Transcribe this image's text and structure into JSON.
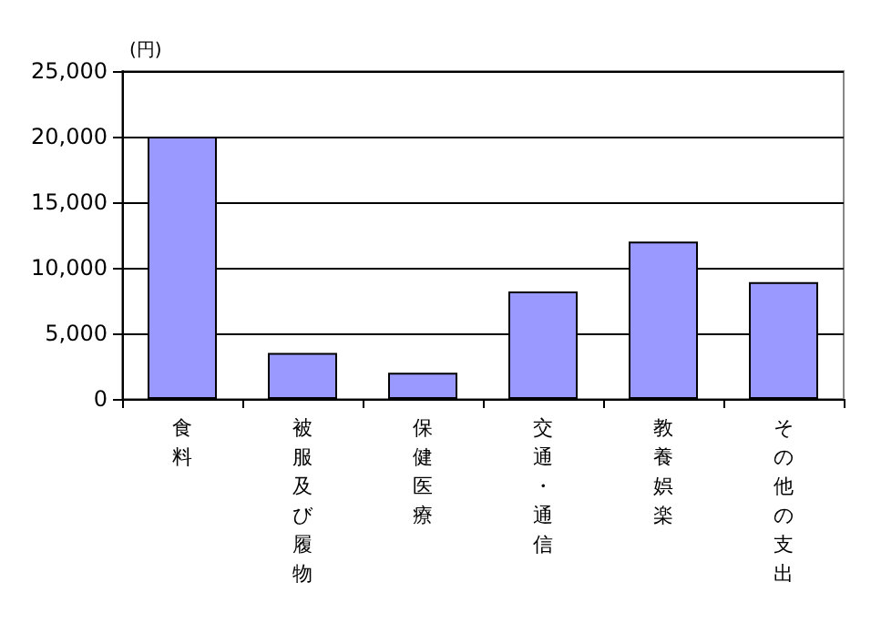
{
  "chart_data": {
    "type": "bar",
    "ylabel": "(円)",
    "categories": [
      "食料",
      "被服及び履物",
      "保健医療",
      "交通・通信",
      "教養娯楽",
      "その他の支出"
    ],
    "values": [
      20000,
      3500,
      2000,
      8200,
      12000,
      8900
    ],
    "color": "#9999ff",
    "ylim": [
      0,
      25000
    ],
    "yticks": [
      {
        "value": 0,
        "label": "0"
      },
      {
        "value": 5000,
        "label": "5,000"
      },
      {
        "value": 10000,
        "label": "10,000"
      },
      {
        "value": 15000,
        "label": "15,000"
      },
      {
        "value": 20000,
        "label": "20,000"
      },
      {
        "value": 25000,
        "label": "25,000"
      }
    ],
    "grid": "y"
  }
}
